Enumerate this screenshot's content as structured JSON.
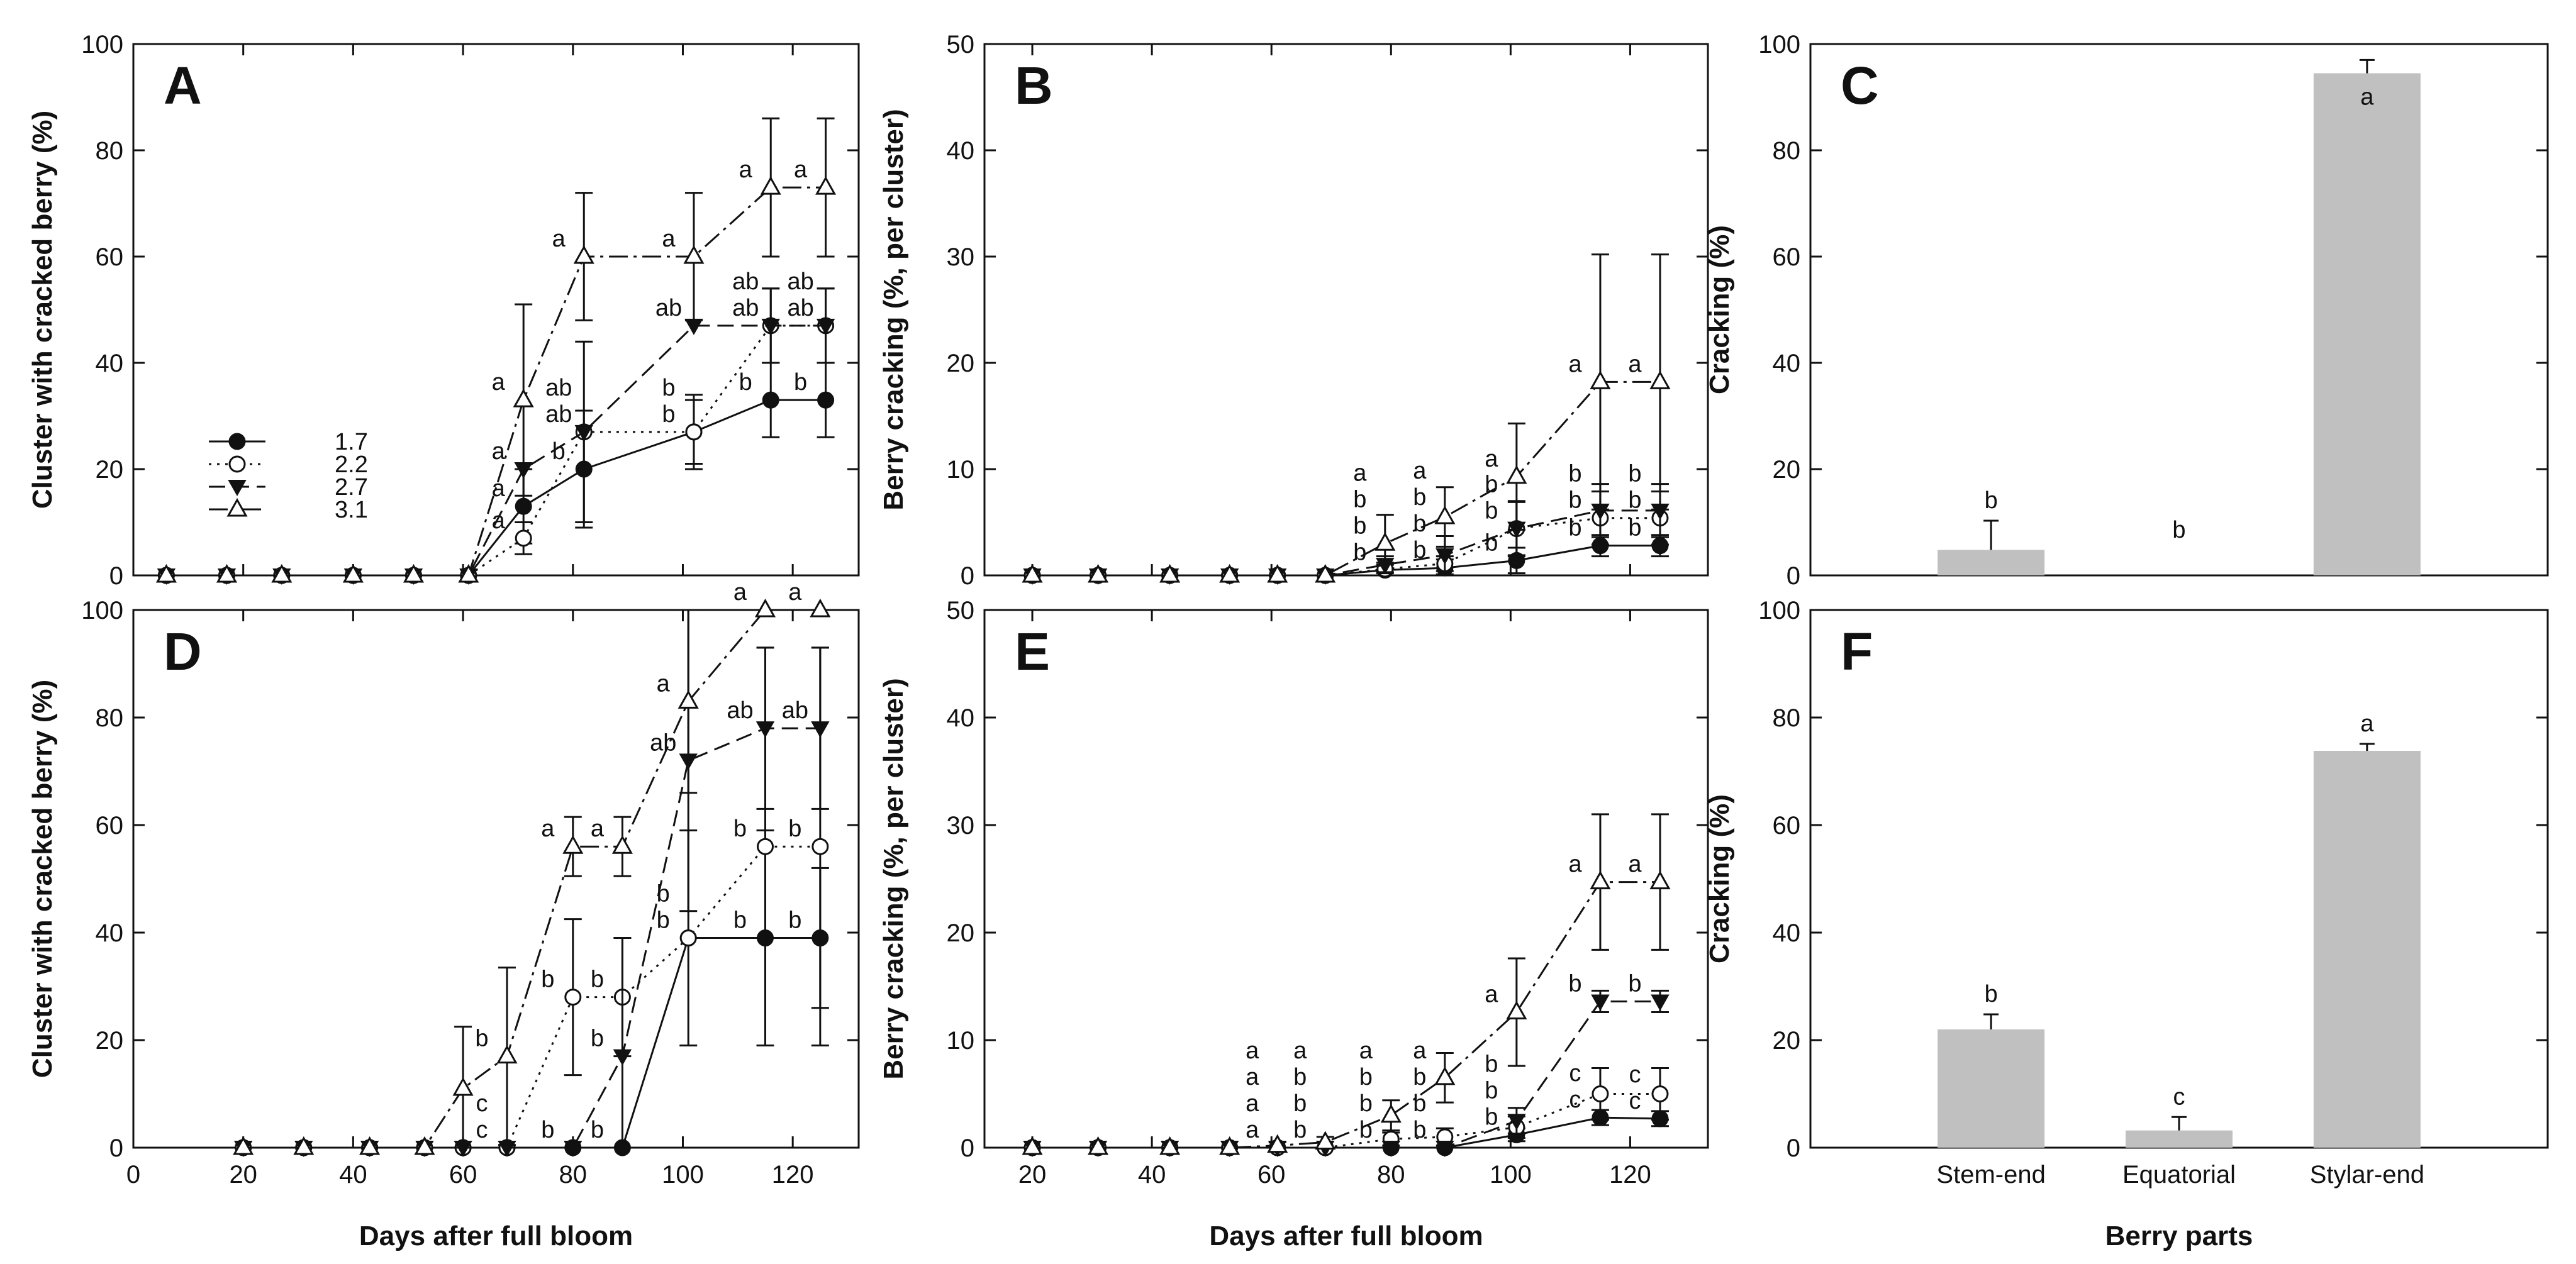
{
  "chart_data": [
    {
      "panel": "A",
      "type": "line",
      "ylabel": "Cluster with cracked berry (%)",
      "xlabel": "",
      "xlim": [
        0,
        132
      ],
      "ylim": [
        0,
        100
      ],
      "yticks": [
        0,
        20,
        40,
        60,
        80,
        100
      ],
      "xticks": [
        0,
        20,
        40,
        60,
        80,
        100,
        120
      ],
      "xtick_labels": false,
      "legend": [
        "1.7",
        "2.2",
        "2.7",
        "3.1"
      ],
      "legend_loc": "center-left",
      "series": [
        {
          "name": "1.7",
          "x": [
            6,
            17,
            27,
            40,
            51,
            61,
            71,
            82,
            102,
            116,
            126
          ],
          "y": [
            0,
            0,
            0,
            0,
            0,
            0,
            13,
            20,
            27,
            33,
            33
          ],
          "err": [
            0,
            0,
            0,
            0,
            0,
            0,
            7,
            11,
            7,
            7,
            7
          ],
          "labels": [
            "",
            "",
            "",
            "",
            "",
            "",
            "a",
            "b",
            "b",
            "b",
            "b"
          ]
        },
        {
          "name": "2.2",
          "x": [
            6,
            17,
            27,
            40,
            51,
            61,
            71,
            82,
            102,
            116,
            126
          ],
          "y": [
            0,
            0,
            0,
            0,
            0,
            0,
            7,
            27,
            27,
            47,
            47
          ],
          "err": [
            0,
            0,
            0,
            0,
            0,
            0,
            3,
            0,
            6,
            7,
            7
          ],
          "labels": [
            "",
            "",
            "",
            "",
            "",
            "",
            "a",
            "ab",
            "b",
            "ab",
            "ab"
          ]
        },
        {
          "name": "2.7",
          "x": [
            6,
            17,
            27,
            40,
            51,
            61,
            71,
            82,
            102,
            116,
            126
          ],
          "y": [
            0,
            0,
            0,
            0,
            0,
            0,
            20,
            27,
            47,
            47,
            47
          ],
          "err": [
            0,
            0,
            0,
            0,
            0,
            0,
            0,
            17,
            0,
            7,
            7
          ],
          "labels": [
            "",
            "",
            "",
            "",
            "",
            "",
            "a",
            "ab",
            "ab",
            "ab",
            "ab"
          ]
        },
        {
          "name": "3.1",
          "x": [
            6,
            17,
            27,
            40,
            51,
            61,
            71,
            82,
            102,
            116,
            126
          ],
          "y": [
            0,
            0,
            0,
            0,
            0,
            0,
            33,
            60,
            60,
            73,
            73
          ],
          "err": [
            0,
            0,
            0,
            0,
            0,
            0,
            18,
            12,
            12,
            13,
            13
          ],
          "labels": [
            "",
            "",
            "",
            "",
            "",
            "",
            "a",
            "a",
            "a",
            "a",
            "a"
          ]
        }
      ]
    },
    {
      "panel": "B",
      "type": "line",
      "ylabel": "Berry cracking (%, per cluster)",
      "xlabel": "",
      "xlim": [
        12,
        133
      ],
      "ylim": [
        0,
        50
      ],
      "yticks": [
        0,
        10,
        20,
        30,
        40,
        50
      ],
      "xticks": [
        20,
        40,
        60,
        80,
        100,
        120
      ],
      "xtick_labels": false,
      "series": [
        {
          "name": "1.7",
          "x": [
            20,
            31,
            43,
            53,
            61,
            69,
            79,
            89,
            101,
            115,
            125
          ],
          "y": [
            0,
            0,
            0,
            0,
            0,
            0,
            0.5,
            0.7,
            1.4,
            2.8,
            2.8
          ],
          "err": [
            0,
            0,
            0,
            0,
            0,
            0,
            0.5,
            0.8,
            1.2,
            1,
            1
          ],
          "labels": [
            "",
            "",
            "",
            "",
            "",
            "",
            "b",
            "b",
            "b",
            "b",
            "b"
          ]
        },
        {
          "name": "2.2",
          "x": [
            20,
            31,
            43,
            53,
            61,
            69,
            79,
            89,
            101,
            115,
            125
          ],
          "y": [
            0,
            0,
            0,
            0,
            0,
            0,
            0.6,
            1.1,
            4.4,
            5.4,
            5.4
          ],
          "err": [
            0,
            0,
            0,
            0,
            0,
            0,
            0.6,
            0.7,
            2.5,
            2.5,
            2.5
          ],
          "labels": [
            "",
            "",
            "",
            "",
            "",
            "",
            "b",
            "b",
            "b",
            "b",
            "b"
          ]
        },
        {
          "name": "2.7",
          "x": [
            20,
            31,
            43,
            53,
            61,
            69,
            79,
            89,
            101,
            115,
            125
          ],
          "y": [
            0,
            0,
            0,
            0,
            0,
            0,
            1,
            1.9,
            4.4,
            6.1,
            6.1
          ],
          "err": [
            0,
            0,
            0,
            0,
            0,
            0,
            0.8,
            1.8,
            2.6,
            2.5,
            2.5
          ],
          "labels": [
            "",
            "",
            "",
            "",
            "",
            "",
            "b",
            "b",
            "b",
            "b",
            "b"
          ]
        },
        {
          "name": "3.1",
          "x": [
            20,
            31,
            43,
            53,
            61,
            69,
            79,
            89,
            101,
            115,
            125
          ],
          "y": [
            0,
            0,
            0,
            0,
            0,
            0,
            3,
            5.5,
            9.3,
            18.2,
            18.2
          ],
          "err": [
            0,
            0,
            0,
            0,
            0,
            0,
            2.7,
            2.8,
            5,
            12,
            12
          ],
          "labels": [
            "",
            "",
            "",
            "",
            "",
            "",
            "a",
            "a",
            "a",
            "a",
            "a"
          ]
        }
      ]
    },
    {
      "panel": "C",
      "type": "bar",
      "ylabel": "Cracking (%)",
      "xlabel": "",
      "categories": [
        "Stem-end",
        "Equatorial",
        "Stylar-end"
      ],
      "values": [
        4.8,
        0,
        94.5
      ],
      "err": [
        5.5,
        0,
        2.5
      ],
      "labels": [
        "b",
        "b",
        "a"
      ],
      "ylim": [
        0,
        100
      ],
      "yticks": [
        0,
        20,
        40,
        60,
        80,
        100
      ],
      "category_labels": false
    },
    {
      "panel": "D",
      "type": "line",
      "ylabel": "Cluster with cracked berry (%)",
      "xlabel": "Days after full bloom",
      "xlim": [
        0,
        132
      ],
      "ylim": [
        0,
        100
      ],
      "yticks": [
        0,
        20,
        40,
        60,
        80,
        100
      ],
      "xticks": [
        0,
        20,
        40,
        60,
        80,
        100,
        120
      ],
      "xtick_labels": true,
      "series": [
        {
          "name": "1.7",
          "x": [
            20,
            31,
            43,
            53,
            60,
            68,
            80,
            89,
            101,
            115,
            125
          ],
          "y": [
            0,
            0,
            0,
            0,
            0,
            0,
            0,
            0,
            39,
            39,
            39
          ],
          "err": [
            0,
            0,
            0,
            0,
            0,
            0,
            0,
            0,
            20,
            20,
            13
          ],
          "labels": [
            "",
            "",
            "",
            "",
            "",
            "",
            "",
            "b",
            "b",
            "b",
            "b"
          ]
        },
        {
          "name": "2.2",
          "x": [
            20,
            31,
            43,
            53,
            60,
            68,
            80,
            89,
            101,
            115,
            125
          ],
          "y": [
            0,
            0,
            0,
            0,
            0,
            0,
            28,
            28,
            39,
            56,
            56
          ],
          "err": [
            0,
            0,
            0,
            0,
            0,
            0,
            14.5,
            11,
            0,
            37,
            37
          ],
          "labels": [
            "",
            "",
            "",
            "",
            "",
            "c",
            "b",
            "b",
            "b",
            "b",
            "b"
          ]
        },
        {
          "name": "2.7",
          "x": [
            20,
            31,
            43,
            53,
            60,
            68,
            80,
            89,
            101,
            115,
            125
          ],
          "y": [
            0,
            0,
            0,
            0,
            0,
            0,
            0,
            17,
            72,
            78,
            78
          ],
          "err": [
            0,
            0,
            0,
            0,
            0,
            0,
            0,
            22,
            28,
            15,
            15
          ],
          "labels": [
            "",
            "",
            "",
            "",
            "",
            "c",
            "b",
            "b",
            "ab",
            "ab",
            "ab"
          ]
        },
        {
          "name": "3.1",
          "x": [
            20,
            31,
            43,
            53,
            60,
            68,
            80,
            89,
            101,
            115,
            125
          ],
          "y": [
            0,
            0,
            0,
            0,
            11,
            17,
            56,
            56,
            83,
            100,
            100
          ],
          "err": [
            0,
            0,
            0,
            0,
            11.5,
            16.5,
            5.5,
            5.5,
            17,
            0,
            0
          ],
          "labels": [
            "",
            "",
            "",
            "",
            "",
            "b",
            "a",
            "a",
            "a",
            "a",
            "a"
          ]
        }
      ]
    },
    {
      "panel": "E",
      "type": "line",
      "ylabel": "Berry cracking (%, per cluster)",
      "xlabel": "Days after full bloom",
      "xlim": [
        12,
        133
      ],
      "ylim": [
        0,
        50
      ],
      "yticks": [
        0,
        10,
        20,
        30,
        40,
        50
      ],
      "xticks": [
        20,
        40,
        60,
        80,
        100,
        120
      ],
      "xtick_labels": true,
      "series": [
        {
          "name": "1.7",
          "x": [
            20,
            31,
            43,
            53,
            61,
            69,
            80,
            89,
            101,
            115,
            125
          ],
          "y": [
            0,
            0,
            0,
            0,
            0,
            0,
            0,
            0,
            1.2,
            2.8,
            2.7
          ],
          "err": [
            0,
            0,
            0,
            0,
            0,
            0,
            0,
            0,
            0.6,
            0.7,
            0.7
          ],
          "labels": [
            "",
            "",
            "",
            "",
            "a",
            "b",
            "b",
            "b",
            "b",
            "c",
            "c"
          ]
        },
        {
          "name": "2.2",
          "x": [
            20,
            31,
            43,
            53,
            61,
            69,
            80,
            89,
            101,
            115,
            125
          ],
          "y": [
            0,
            0,
            0,
            0,
            0,
            0,
            0.8,
            1,
            1.9,
            5,
            5
          ],
          "err": [
            0,
            0,
            0,
            0,
            0,
            0,
            0.6,
            0.8,
            1,
            2.4,
            2.4
          ],
          "labels": [
            "",
            "",
            "",
            "",
            "a",
            "b",
            "b",
            "b",
            "b",
            "c",
            "c"
          ]
        },
        {
          "name": "2.7",
          "x": [
            20,
            31,
            43,
            53,
            61,
            69,
            80,
            89,
            101,
            115,
            125
          ],
          "y": [
            0,
            0,
            0,
            0,
            0,
            0,
            0,
            0,
            2.5,
            13.6,
            13.6
          ],
          "err": [
            0,
            0,
            0,
            0,
            0,
            0,
            0,
            0,
            1.2,
            1,
            1
          ],
          "labels": [
            "",
            "",
            "",
            "",
            "a",
            "b",
            "b",
            "b",
            "b",
            "b",
            "b"
          ]
        },
        {
          "name": "3.1",
          "x": [
            20,
            31,
            43,
            53,
            61,
            69,
            80,
            89,
            101,
            115,
            125
          ],
          "y": [
            0,
            0,
            0,
            0,
            0.2,
            0.5,
            3,
            6.5,
            12.6,
            24.7,
            24.7
          ],
          "err": [
            0,
            0,
            0,
            0,
            0.3,
            0.5,
            1.4,
            2.3,
            5,
            6.3,
            6.3
          ],
          "labels": [
            "",
            "",
            "",
            "",
            "a",
            "a",
            "a",
            "a",
            "a",
            "a",
            "a"
          ]
        }
      ]
    },
    {
      "panel": "F",
      "type": "bar",
      "ylabel": "Cracking (%)",
      "xlabel": "Berry parts",
      "categories": [
        "Stem-end",
        "Equatorial",
        "Stylar-end"
      ],
      "values": [
        22,
        3.2,
        73.8
      ],
      "err": [
        2.8,
        2.5,
        1.3
      ],
      "labels": [
        "b",
        "c",
        "a"
      ],
      "ylim": [
        0,
        100
      ],
      "yticks": [
        0,
        20,
        40,
        60,
        80,
        100
      ],
      "category_labels": true
    }
  ],
  "colors": {
    "axis": "#111111",
    "line": "#111111",
    "bar": "#c0c0c0",
    "background": "#ffffff"
  },
  "markers": {
    "1.7": "filled-circle",
    "2.2": "open-circle",
    "2.7": "filled-triangle-down",
    "3.1": "open-triangle-up"
  }
}
